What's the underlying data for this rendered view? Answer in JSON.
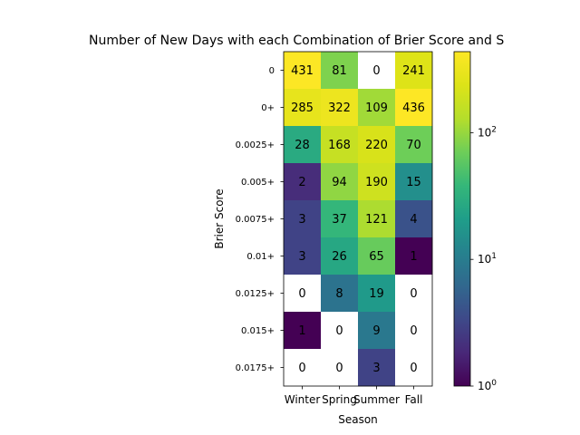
{
  "chart_data": {
    "type": "heatmap",
    "title": "Number of New Days with each Combination of Brier Score and S",
    "xlabel": "Season",
    "ylabel": "Brier Score",
    "x_categories": [
      "Winter",
      "Spring",
      "Summer",
      "Fall"
    ],
    "y_categories": [
      "0",
      "0+",
      "0.0025+",
      "0.005+",
      "0.0075+",
      "0.01+",
      "0.0125+",
      "0.015+",
      "0.0175+"
    ],
    "values": [
      [
        431,
        81,
        0,
        241
      ],
      [
        285,
        322,
        109,
        436
      ],
      [
        28,
        168,
        220,
        70
      ],
      [
        2,
        94,
        190,
        15
      ],
      [
        3,
        37,
        121,
        4
      ],
      [
        3,
        26,
        65,
        1
      ],
      [
        0,
        8,
        19,
        0
      ],
      [
        1,
        0,
        9,
        0
      ],
      [
        0,
        0,
        3,
        0
      ]
    ],
    "colorbar": {
      "scale": "log",
      "colormap": "viridis",
      "range": [
        1,
        436
      ],
      "tick_values": [
        1,
        10,
        100
      ],
      "tick_base": "10",
      "tick_exponents": [
        "0",
        "1",
        "2"
      ]
    },
    "zero_color": "#ffffff"
  }
}
